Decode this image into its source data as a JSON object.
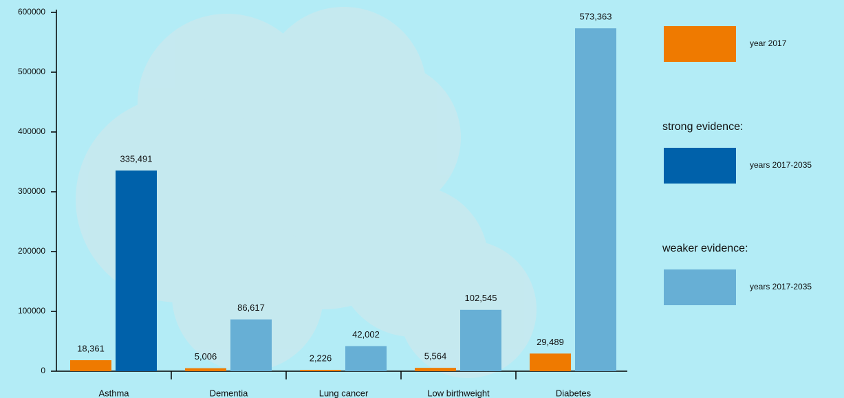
{
  "chart_data": {
    "type": "bar",
    "categories": [
      "Asthma",
      "Dementia",
      "Lung cancer",
      "Low birthweight",
      "Diabetes"
    ],
    "series": [
      {
        "name": "year 2017",
        "color": "#ef7a00",
        "values": [
          18361,
          5006,
          2226,
          5564,
          29489
        ],
        "value_labels": [
          "18,361",
          "5,006",
          "2,226",
          "5,564",
          "29,489"
        ]
      },
      {
        "name": "years 2017-2035",
        "legend_title": "strong evidence:",
        "color": "#0061aa",
        "values": [
          335491,
          null,
          null,
          null,
          null
        ],
        "value_labels": [
          "335,491",
          null,
          null,
          null,
          null
        ]
      },
      {
        "name": "years 2017-2035",
        "legend_title": "weaker evidence:",
        "color": "#67afd5",
        "values": [
          null,
          86617,
          42002,
          102545,
          573363
        ],
        "value_labels": [
          null,
          "86,617",
          "42,002",
          "102,545",
          "573,363"
        ]
      }
    ],
    "ylim": [
      0,
      600000
    ],
    "yticks": [
      0,
      100000,
      200000,
      300000,
      400000,
      500000,
      600000
    ]
  }
}
